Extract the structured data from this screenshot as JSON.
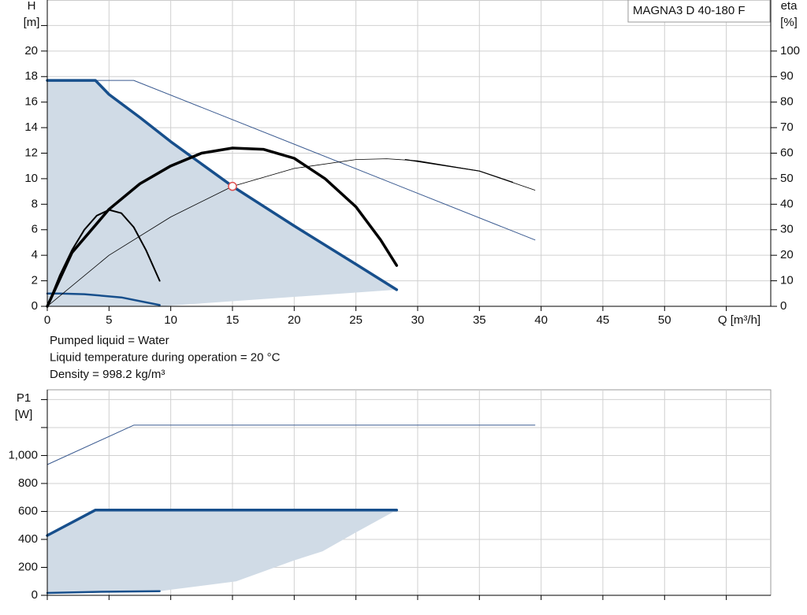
{
  "chart_data": [
    {
      "type": "line",
      "title": "MAGNA3 D 40-180 F",
      "xlabel": "Q [m³/h]",
      "ylabel": [
        "H",
        "[m]"
      ],
      "y2label": [
        "eta",
        "[%]"
      ],
      "annotations": [
        "Pumped liquid = Water",
        "Liquid temperature during operation = 20 °C",
        "Density = 998.2 kg/m³"
      ],
      "xlim": [
        0,
        58.6
      ],
      "xticks": [
        0,
        5,
        10,
        15,
        20,
        25,
        30,
        35,
        40,
        45,
        50,
        {
          "value": 55,
          "label": null
        }
      ],
      "ylim": [
        0,
        24
      ],
      "yticks": [
        0,
        2,
        4,
        6,
        8,
        10,
        12,
        14,
        16,
        18,
        20,
        {
          "value": 22,
          "label": null
        }
      ],
      "y2lim": [
        0,
        120
      ],
      "y2ticks": [
        0,
        10,
        20,
        30,
        40,
        50,
        60,
        70,
        80,
        90,
        100
      ],
      "grid": true,
      "series": [
        {
          "kind": "area",
          "color": "#d0dbe6",
          "x": [
            0,
            3.9,
            5,
            7.5,
            10,
            15,
            20,
            25,
            28.3,
            9.1,
            0
          ],
          "values": [
            17.7,
            17.7,
            16.6,
            14.8,
            12.9,
            9.4,
            6.3,
            3.3,
            1.3,
            0,
            0
          ]
        },
        {
          "kind": "line",
          "color": "#3a5a90",
          "width": 1,
          "x": [
            0,
            7,
            39.5
          ],
          "values": [
            17.7,
            17.7,
            5.2
          ]
        },
        {
          "kind": "line",
          "color": "#174f8c",
          "width": 3.5,
          "x": [
            0,
            3.9,
            5,
            7.5,
            10,
            15,
            20,
            25,
            28.3
          ],
          "values": [
            17.7,
            17.7,
            16.6,
            14.8,
            12.9,
            9.4,
            6.3,
            3.3,
            1.3
          ]
        },
        {
          "kind": "line",
          "color": "#174f8c",
          "width": 2.5,
          "x": [
            0,
            1,
            3,
            6,
            9.1
          ],
          "values": [
            1.0,
            1.0,
            0.95,
            0.7,
            0.1
          ]
        },
        {
          "kind": "line",
          "axis": "y2",
          "color": "#000000",
          "width": 3.5,
          "x": [
            0,
            2,
            5,
            7.5,
            10,
            12.5,
            15,
            17.5,
            20,
            22.5,
            25,
            27,
            28.3
          ],
          "values": [
            0,
            21,
            38,
            48,
            55,
            60,
            62,
            61.5,
            58,
            50,
            39,
            26,
            16
          ]
        },
        {
          "kind": "line",
          "axis": "y2",
          "color": "#000000",
          "width": 2,
          "x": [
            0,
            1,
            2,
            3,
            4,
            5,
            6,
            7,
            8,
            9.1
          ],
          "values": [
            0,
            12,
            22,
            30,
            35.5,
            37.8,
            36.5,
            31,
            22,
            10
          ]
        },
        {
          "kind": "line",
          "axis": "y2",
          "color": "#000000",
          "width": 0.8,
          "x": [
            0,
            5,
            10,
            15,
            20,
            25,
            27.5,
            30,
            35,
            39.5
          ],
          "values": [
            0,
            20,
            35,
            47,
            54,
            57.5,
            57.8,
            57,
            53,
            45.5
          ]
        },
        {
          "kind": "line",
          "axis": "y2",
          "color": "#000000",
          "width": 1.2,
          "x": [
            29,
            35,
            37.7
          ],
          "values": [
            57.5,
            53,
            48.6
          ]
        },
        {
          "kind": "marker",
          "color": "#e05050",
          "x": [
            15
          ],
          "values": [
            9.4
          ]
        }
      ]
    },
    {
      "type": "line",
      "ylabel": [
        "P1",
        "[W]"
      ],
      "xlim": [
        0,
        58.6
      ],
      "xticks": [
        {
          "value": 0,
          "label": null
        },
        {
          "value": 5,
          "label": null
        },
        {
          "value": 10,
          "label": null
        },
        {
          "value": 15,
          "label": null
        },
        {
          "value": 20,
          "label": null
        },
        {
          "value": 25,
          "label": null
        },
        {
          "value": 30,
          "label": null
        },
        {
          "value": 35,
          "label": null
        },
        {
          "value": 40,
          "label": null
        },
        {
          "value": 45,
          "label": null
        },
        {
          "value": 50,
          "label": null
        },
        {
          "value": 55,
          "label": null
        }
      ],
      "ylim": [
        0,
        1470
      ],
      "yticks": [
        0,
        200,
        400,
        600,
        800,
        {
          "value": 1000,
          "label": "1,000"
        },
        {
          "value": 1200,
          "label": null
        },
        {
          "value": 1400,
          "label": null
        }
      ],
      "grid": true,
      "series": [
        {
          "kind": "area",
          "color": "#d0dbe6",
          "x": [
            0,
            3.9,
            28.3,
            25,
            22.3,
            20,
            15.3,
            10,
            9.1,
            4,
            0
          ],
          "values": [
            430,
            610,
            610,
            450,
            315,
            250,
            100,
            40,
            30,
            25,
            15
          ]
        },
        {
          "kind": "line",
          "color": "#3a5a90",
          "width": 1,
          "x": [
            0,
            7,
            39.5
          ],
          "values": [
            935,
            1217,
            1217
          ]
        },
        {
          "kind": "line",
          "color": "#174f8c",
          "width": 3.5,
          "x": [
            0,
            3.9,
            28.3
          ],
          "values": [
            428,
            610,
            610
          ]
        },
        {
          "kind": "line",
          "color": "#174f8c",
          "width": 2.5,
          "x": [
            0,
            4,
            9.1
          ],
          "values": [
            17,
            25,
            30
          ]
        }
      ]
    }
  ]
}
